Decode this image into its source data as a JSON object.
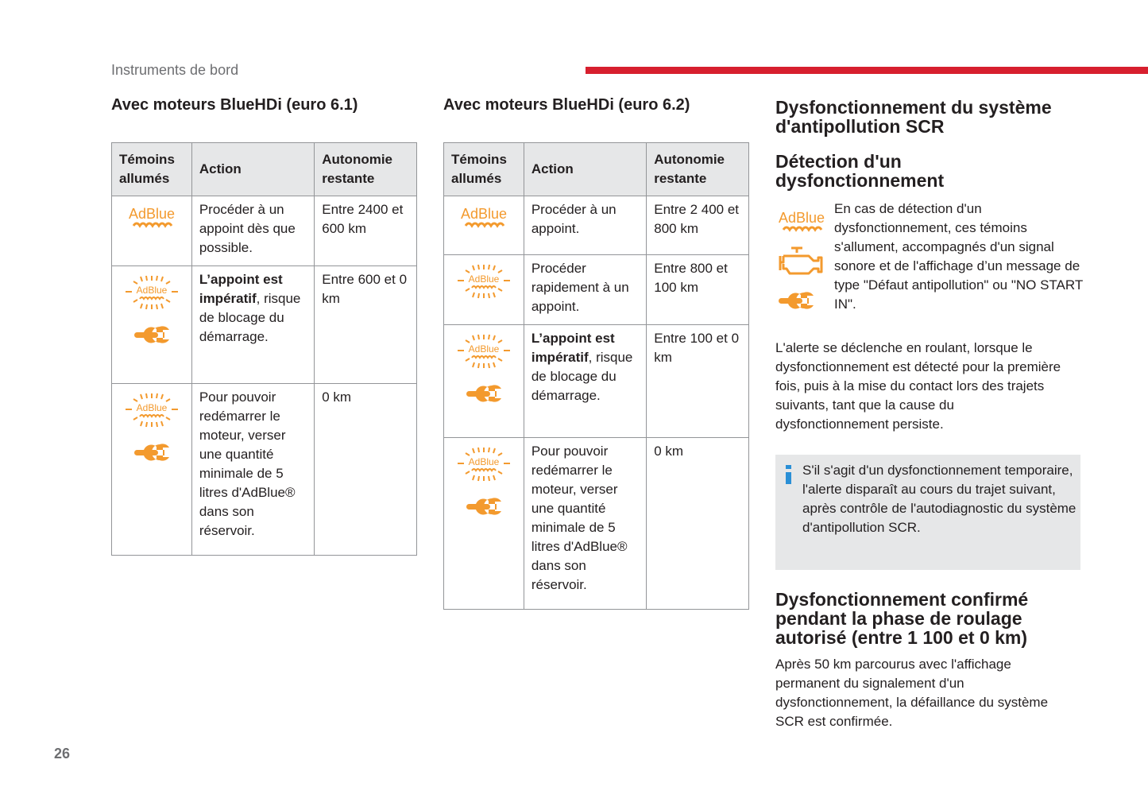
{
  "header": {
    "section": "Instruments de bord",
    "page_number": "26",
    "accent": "#d71f2e"
  },
  "colors": {
    "warning_orange": "#f39a2e",
    "info_blue": "#2a8fd6",
    "header_gray": "#e6e7e8"
  },
  "table1": {
    "title": "Avec moteurs BlueHDi (euro 6.1)",
    "headers": [
      "Témoins allumés",
      "Action",
      "Autonomie restante"
    ],
    "rows": [
      {
        "icons": [
          "adblue"
        ],
        "action_bold": "",
        "action": "Procéder à un appoint dès que possible.",
        "range": "Entre 2400 et 600 km"
      },
      {
        "icons": [
          "adblue-flashing",
          "wrench"
        ],
        "action_bold": "L’appoint est impératif",
        "action": ", risque de blocage du démarrage.",
        "range": "Entre 600 et 0 km"
      },
      {
        "icons": [
          "adblue-flashing",
          "wrench"
        ],
        "action_bold": "",
        "action": "Pour pouvoir redémarrer le moteur, verser une quantité minimale de 5 litres d'AdBlue® dans son réservoir.",
        "range": "0 km"
      }
    ]
  },
  "table2": {
    "title": "Avec moteurs BlueHDi (euro 6.2)",
    "headers": [
      "Témoins allumés",
      "Action",
      "Autonomie restante"
    ],
    "rows": [
      {
        "icons": [
          "adblue"
        ],
        "action_bold": "",
        "action": "Procéder à un appoint.",
        "range": "Entre 2 400 et 800 km"
      },
      {
        "icons": [
          "adblue-flashing"
        ],
        "action_bold": "",
        "action": "Procéder rapidement à un appoint.",
        "range": "Entre 800 et 100 km"
      },
      {
        "icons": [
          "adblue-flashing",
          "wrench"
        ],
        "action_bold": "L’appoint est impératif",
        "action": ", risque de blocage du démarrage.",
        "range": "Entre 100 et 0 km"
      },
      {
        "icons": [
          "adblue-flashing",
          "wrench"
        ],
        "action_bold": "",
        "action": "Pour pouvoir redémarrer le moteur, verser une quantité minimale de 5 litres d'AdBlue® dans son réservoir.",
        "range": "0 km"
      }
    ]
  },
  "right": {
    "title": "Dysfonctionnement du système d'antipollution SCR",
    "detection_title": "Détection d'un dysfonctionnement",
    "detection_icons": [
      "adblue",
      "engine",
      "wrench"
    ],
    "detection_text": "En cas de détection d'un dysfonctionnement, ces témoins s'allument, accompagnés d'un signal sonore et de l'affichage d’un message de type \"Défaut antipollution\" ou \"NO START IN\".",
    "alert_text": "L'alerte se déclenche en roulant, lorsque le dysfonctionnement est détecté pour la première fois, puis à la mise du contact lors des trajets suivants, tant que la cause du dysfonctionnement persiste.",
    "info_text": "S'il s'agit d'un dysfonctionnement temporaire, l'alerte disparaît au cours du trajet suivant, après contrôle de l'autodiagnostic du système d'antipollution SCR.",
    "confirmed_title": "Dysfonctionnement confirmé pendant la phase de roulage autorisé (entre 1 100 et 0 km)",
    "confirmed_text": "Après 50 km parcourus avec l'affichage permanent du signalement d'un dysfonctionnement, la défaillance du système SCR est confirmée."
  }
}
